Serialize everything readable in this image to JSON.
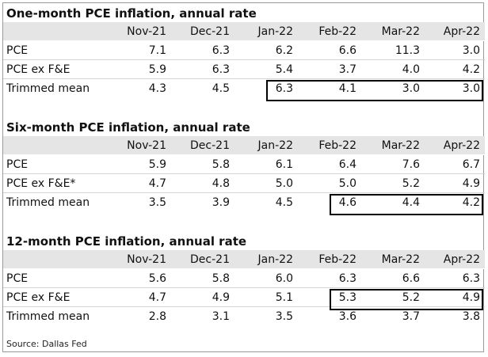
{
  "tables": [
    {
      "title": "One-month PCE inflation, annual rate",
      "columns": [
        "Nov-21",
        "Dec-21",
        "Jan-22",
        "Feb-22",
        "Mar-22",
        "Apr-22"
      ],
      "rows": [
        {
          "label": "PCE",
          "values": [
            "7.1",
            "6.3",
            "6.2",
            "6.6",
            "11.3",
            "3.0"
          ]
        },
        {
          "label": "PCE ex F&E",
          "values": [
            "5.9",
            "6.3",
            "5.4",
            "3.7",
            "4.0",
            "4.2"
          ]
        },
        {
          "label": "Trimmed mean",
          "values": [
            "4.3",
            "4.5",
            "6.3",
            "4.1",
            "3.0",
            "3.0"
          ]
        }
      ]
    },
    {
      "title": "Six-month PCE inflation, annual rate",
      "columns": [
        "Nov-21",
        "Dec-21",
        "Jan-22",
        "Feb-22",
        "Mar-22",
        "Apr-22"
      ],
      "rows": [
        {
          "label": "PCE",
          "values": [
            "5.9",
            "5.8",
            "6.1",
            "6.4",
            "7.6",
            "6.7"
          ]
        },
        {
          "label": "PCE ex F&E*",
          "values": [
            "4.7",
            "4.8",
            "5.0",
            "5.0",
            "5.2",
            "4.9"
          ]
        },
        {
          "label": "Trimmed mean",
          "values": [
            "3.5",
            "3.9",
            "4.5",
            "4.6",
            "4.4",
            "4.2"
          ]
        }
      ]
    },
    {
      "title": "12-month PCE inflation, annual rate",
      "columns": [
        "Nov-21",
        "Dec-21",
        "Jan-22",
        "Feb-22",
        "Mar-22",
        "Apr-22"
      ],
      "rows": [
        {
          "label": "PCE",
          "values": [
            "5.6",
            "5.8",
            "6.0",
            "6.3",
            "6.6",
            "6.3"
          ]
        },
        {
          "label": "PCE ex F&E",
          "values": [
            "4.7",
            "4.9",
            "5.1",
            "5.3",
            "5.2",
            "4.9"
          ]
        },
        {
          "label": "Trimmed mean",
          "values": [
            "2.8",
            "3.1",
            "3.5",
            "3.6",
            "3.7",
            "3.8"
          ]
        }
      ]
    }
  ],
  "source": "Source: Dallas Fed"
}
